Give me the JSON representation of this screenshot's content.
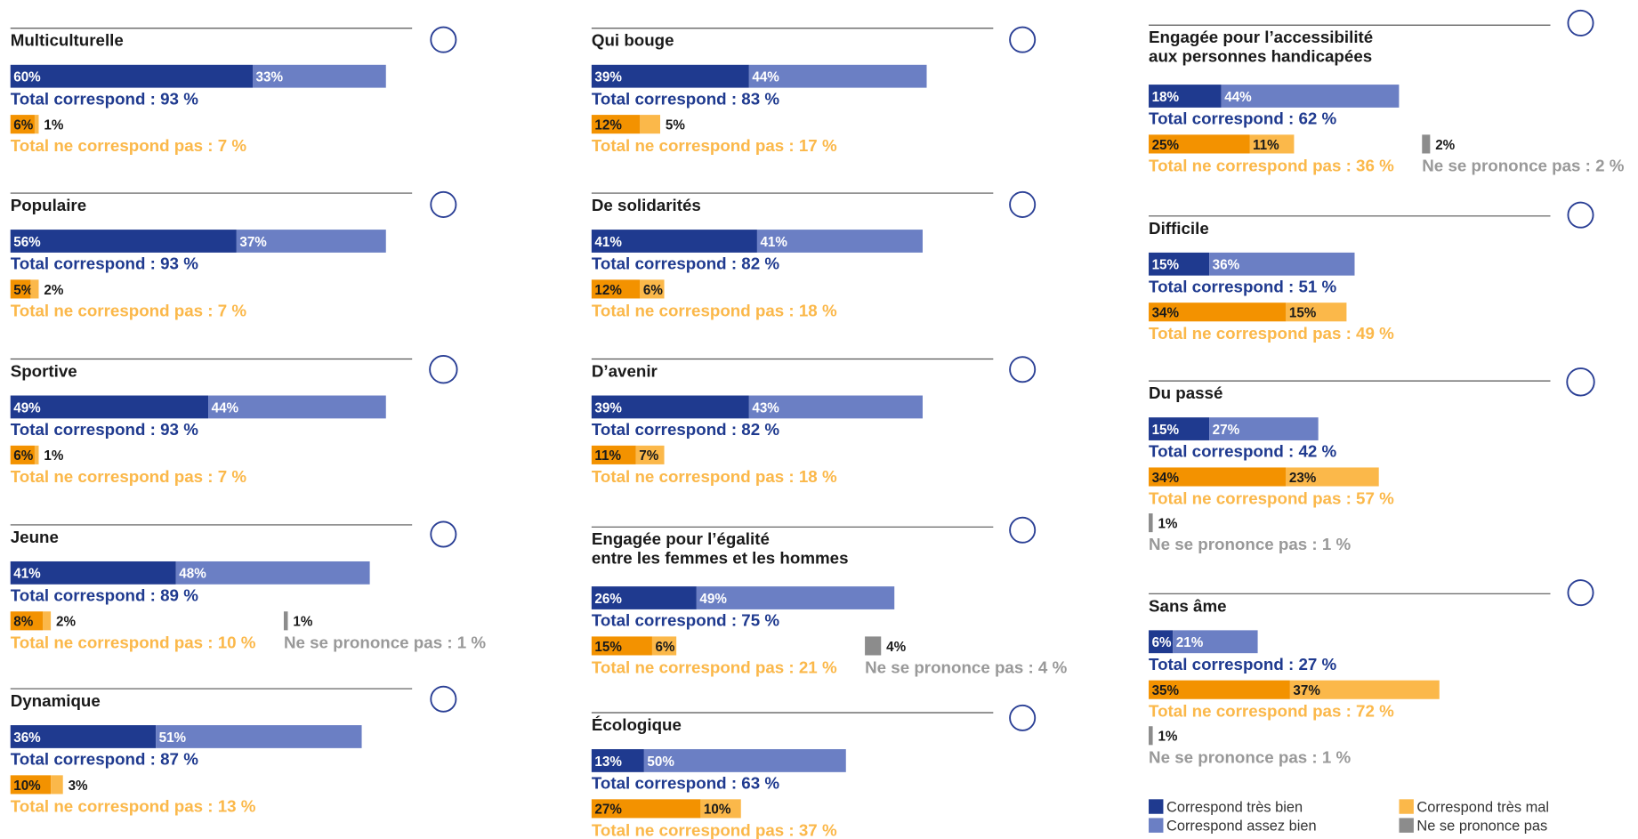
{
  "chart_data": {
    "type": "stacked_bar_panels",
    "series": [
      {
        "name": "Correspond très bien",
        "color": "#1f3a8f"
      },
      {
        "name": "Correspond assez bien",
        "color": "#6b7fc4"
      },
      {
        "name": "Correspond très mal",
        "color": "#fbb84a"
      },
      {
        "name": "Ne se prononce pas",
        "color": "#8c8c8c"
      }
    ],
    "neg_strong_color": "#f39200",
    "items": [
      {
        "label_lines": [
          "Multiculturelle"
        ],
        "values": [
          60,
          33
        ],
        "value_labels": [
          "60%",
          "33%"
        ],
        "total": "Total correspond : 93 %",
        "neg_values": [
          6,
          1
        ],
        "neg_value_labels": [
          "6%",
          "1%"
        ],
        "neg_total": "Total ne correspond pas : 7 %"
      },
      {
        "label_lines": [
          "Populaire"
        ],
        "values": [
          56,
          37
        ],
        "value_labels": [
          "56%",
          "37%"
        ],
        "total": "Total correspond : 93 %",
        "neg_values": [
          5,
          2
        ],
        "neg_value_labels": [
          "5%",
          "2%"
        ],
        "neg_total": "Total ne correspond pas : 7 %"
      },
      {
        "label_lines": [
          "Sportive"
        ],
        "values": [
          49,
          44
        ],
        "value_labels": [
          "49%",
          "44%"
        ],
        "total": "Total correspond : 93 %",
        "neg_values": [
          6,
          1
        ],
        "neg_value_labels": [
          "6%",
          "1%"
        ],
        "neg_total": "Total ne correspond pas : 7 %"
      },
      {
        "label_lines": [
          "Jeune"
        ],
        "values": [
          41,
          48
        ],
        "value_labels": [
          "41%",
          "48%"
        ],
        "total": "Total correspond : 89 %",
        "neg_values": [
          8,
          2
        ],
        "neg_value_labels": [
          "8%",
          "2%"
        ],
        "neg_total": "Total ne correspond pas : 10 %",
        "nsp_value": 1,
        "nsp_value_label": "1%",
        "nsp_total": "Ne se prononce pas : 1 %"
      },
      {
        "label_lines": [
          "Dynamique"
        ],
        "values": [
          36,
          51
        ],
        "value_labels": [
          "36%",
          "51%"
        ],
        "total": "Total correspond : 87 %",
        "neg_values": [
          10,
          3
        ],
        "neg_value_labels": [
          "10%",
          "3%"
        ],
        "neg_total": "Total ne correspond pas : 13 %"
      },
      {
        "label_lines": [
          "Qui bouge"
        ],
        "values": [
          39,
          44
        ],
        "value_labels": [
          "39%",
          "44%"
        ],
        "total": "Total correspond : 83 %",
        "neg_values": [
          12,
          5
        ],
        "neg_value_labels": [
          "12%",
          "5%"
        ],
        "neg_total": "Total ne correspond pas : 17 %"
      },
      {
        "label_lines": [
          "De solidarités"
        ],
        "values": [
          41,
          41
        ],
        "value_labels": [
          "41%",
          "41%"
        ],
        "total": "Total correspond : 82 %",
        "neg_values": [
          12,
          6
        ],
        "neg_value_labels": [
          "12%",
          "6%"
        ],
        "neg_total": "Total ne correspond pas : 18 %"
      },
      {
        "label_lines": [
          "D’avenir"
        ],
        "values": [
          39,
          43
        ],
        "value_labels": [
          "39%",
          "43%"
        ],
        "total": "Total correspond : 82 %",
        "neg_values": [
          11,
          7
        ],
        "neg_value_labels": [
          "11%",
          "7%"
        ],
        "neg_total": "Total ne correspond pas : 18 %"
      },
      {
        "label_lines": [
          "Engagée pour l’égalité",
          "entre les femmes et les hommes"
        ],
        "values": [
          26,
          49
        ],
        "value_labels": [
          "26%",
          "49%"
        ],
        "total": "Total correspond : 75 %",
        "neg_values": [
          15,
          6
        ],
        "neg_value_labels": [
          "15%",
          "6%"
        ],
        "neg_total": "Total ne correspond pas : 21 %",
        "nsp_value": 4,
        "nsp_value_label": "4%",
        "nsp_total": "Ne se prononce pas : 4 %"
      },
      {
        "label_lines": [
          "Écologique"
        ],
        "values": [
          13,
          50
        ],
        "value_labels": [
          "13%",
          "50%"
        ],
        "total": "Total correspond : 63 %",
        "neg_values": [
          27,
          10
        ],
        "neg_value_labels": [
          "27%",
          "10%"
        ],
        "neg_total": "Total ne correspond pas : 37 %"
      },
      {
        "label_lines": [
          "Engagée pour l’accessibilité",
          "aux personnes handicapées"
        ],
        "values": [
          18,
          44
        ],
        "value_labels": [
          "18%",
          "44%"
        ],
        "total": "Total correspond : 62 %",
        "neg_values": [
          25,
          11
        ],
        "neg_value_labels": [
          "25%",
          "11%"
        ],
        "neg_total": "Total ne correspond pas : 36 %",
        "nsp_value": 2,
        "nsp_value_label": "2%",
        "nsp_total": "Ne se prononce pas : 2 %"
      },
      {
        "label_lines": [
          "Difficile"
        ],
        "values": [
          15,
          36
        ],
        "value_labels": [
          "15%",
          "36%"
        ],
        "total": "Total correspond : 51 %",
        "neg_values": [
          34,
          15
        ],
        "neg_value_labels": [
          "34%",
          "15%"
        ],
        "neg_total": "Total ne correspond pas : 49 %"
      },
      {
        "label_lines": [
          "Du passé"
        ],
        "values": [
          15,
          27
        ],
        "value_labels": [
          "15%",
          "27%"
        ],
        "total": "Total correspond : 42 %",
        "neg_values": [
          34,
          23
        ],
        "neg_value_labels": [
          "34%",
          "23%"
        ],
        "neg_total": "Total ne correspond pas : 57 %",
        "nsp_value": 1,
        "nsp_value_label": "1%",
        "nsp_total": "Ne se prononce pas : 1 %"
      },
      {
        "label_lines": [
          "Sans âme"
        ],
        "values": [
          6,
          21
        ],
        "value_labels": [
          "6%",
          "21%"
        ],
        "total": "Total correspond : 27 %",
        "neg_values": [
          35,
          37
        ],
        "neg_value_labels": [
          "35%",
          "37%"
        ],
        "neg_total": "Total ne correspond pas : 72 %",
        "nsp_value": 1,
        "nsp_value_label": "1%",
        "nsp_total": "Ne se prononce pas : 1 %"
      }
    ]
  }
}
